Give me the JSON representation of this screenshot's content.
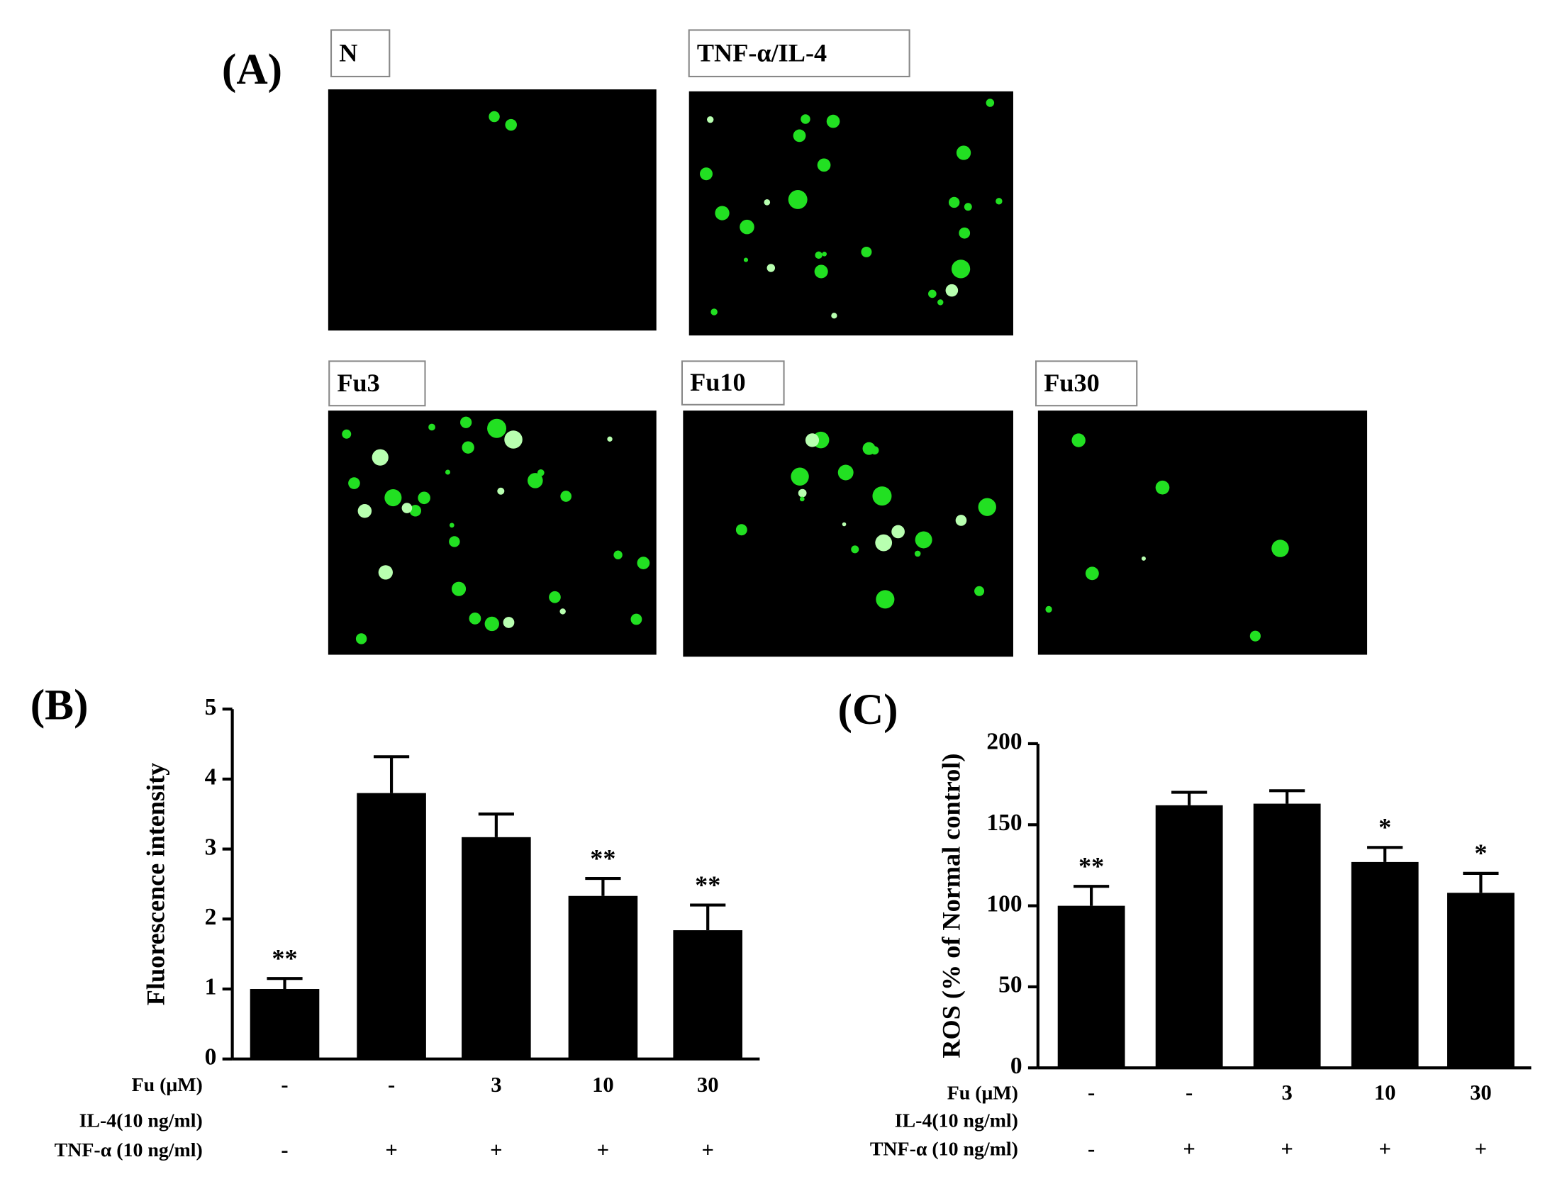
{
  "panel_a": {
    "label": "(A)",
    "images": [
      {
        "label": "N"
      },
      {
        "label": "TNF-α/IL-4"
      },
      {
        "label": "Fu3"
      },
      {
        "label": "Fu10"
      },
      {
        "label": "Fu30"
      }
    ]
  },
  "chart_data": [
    {
      "type": "bar",
      "panel": "(B)",
      "ylabel": "Fluorescence intensity",
      "ylim": [
        0,
        5
      ],
      "yticks": [
        0,
        1,
        2,
        3,
        4,
        5
      ],
      "series": [
        {
          "color": "#000000",
          "values": [
            1.0,
            3.8,
            3.17,
            2.33,
            1.84
          ],
          "errors": [
            0.15,
            0.52,
            0.33,
            0.25,
            0.36
          ],
          "annotations": [
            "**",
            null,
            null,
            "**",
            "**"
          ]
        }
      ],
      "treatments": [
        {
          "label": "Fu (μM)",
          "values": [
            "-",
            "-",
            "3",
            "10",
            "30"
          ]
        },
        {
          "label": "IL-4(10 ng/ml)",
          "values": [
            null,
            null,
            null,
            null,
            null
          ]
        },
        {
          "label": "TNF-α (10 ng/ml)",
          "values": [
            "-",
            "+",
            "+",
            "+",
            "+"
          ]
        }
      ]
    },
    {
      "type": "bar",
      "panel": "(C)",
      "ylabel": "ROS (% of Normal control)",
      "ylim": [
        0,
        200
      ],
      "yticks": [
        0,
        50,
        100,
        150,
        200
      ],
      "series": [
        {
          "color": "#000000",
          "values": [
            100,
            162,
            163,
            127,
            108
          ],
          "errors": [
            12,
            8,
            8,
            9,
            12
          ],
          "annotations": [
            "**",
            null,
            null,
            "*",
            "*"
          ]
        }
      ],
      "treatments": [
        {
          "label": "Fu (μM)",
          "values": [
            "-",
            "-",
            "3",
            "10",
            "30"
          ]
        },
        {
          "label": "IL-4(10 ng/ml)",
          "values": [
            null,
            null,
            null,
            null,
            null
          ]
        },
        {
          "label": "TNF-α (10 ng/ml)",
          "values": [
            "-",
            "+",
            "+",
            "+",
            "+"
          ]
        }
      ]
    }
  ]
}
